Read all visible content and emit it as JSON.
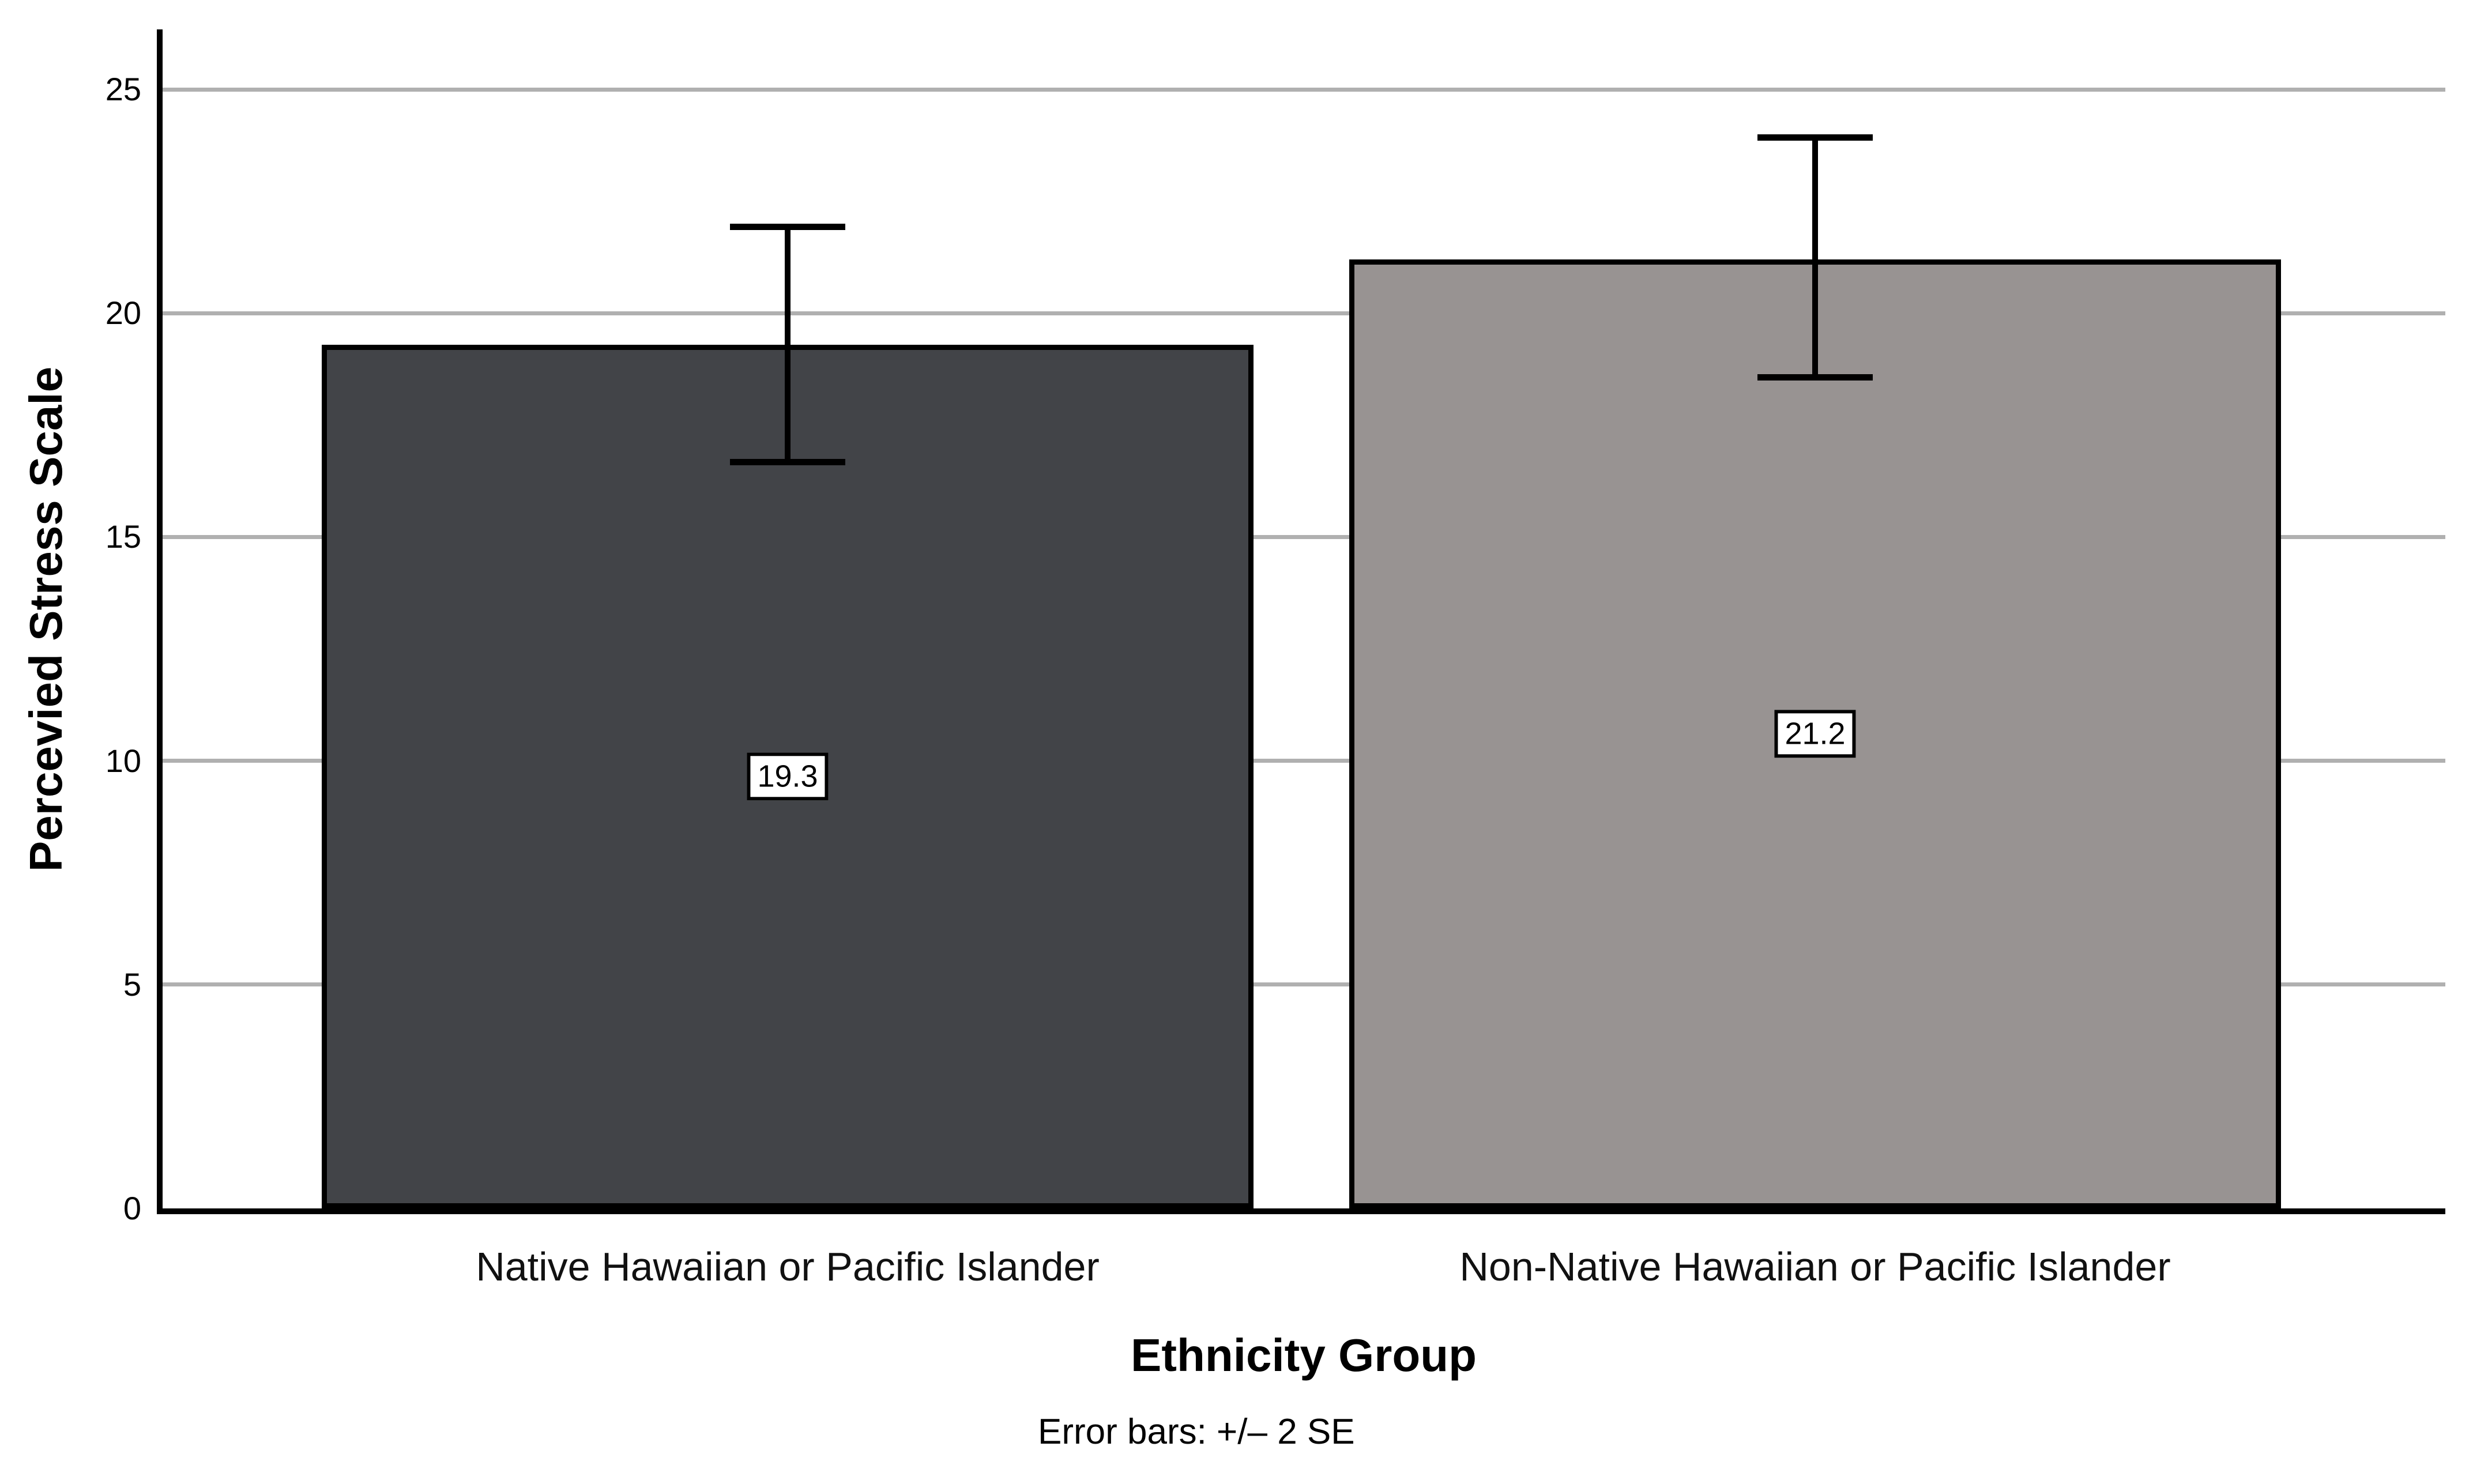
{
  "chart_data": {
    "type": "bar",
    "title": "",
    "xlabel": "Ethnicity Group",
    "ylabel": "Percevied Stress Scale",
    "footnote": "Error bars: +/– 2 SE",
    "categories": [
      "Native Hawaiian or Pacific Islander",
      "Non-Native Hawaiian or Pacific Islander"
    ],
    "values": [
      19.3,
      21.2
    ],
    "value_labels": [
      "19.3",
      "21.2"
    ],
    "error_bars": {
      "definition": "+/- 2 SE",
      "low": [
        16.6,
        18.5
      ],
      "high": [
        22.0,
        24.0
      ]
    },
    "yticks": [
      0,
      5,
      10,
      15,
      20,
      25
    ],
    "ylim": [
      0,
      25
    ],
    "grid": true,
    "legend_position": "none",
    "colors": {
      "bar_fills": [
        "#424448",
        "#989392"
      ],
      "bar_border": "#000000",
      "gridline": "#B0B0B0",
      "axis": "#000000",
      "background": "#FFFFFF",
      "value_label_box": "#FFFFFF"
    }
  }
}
